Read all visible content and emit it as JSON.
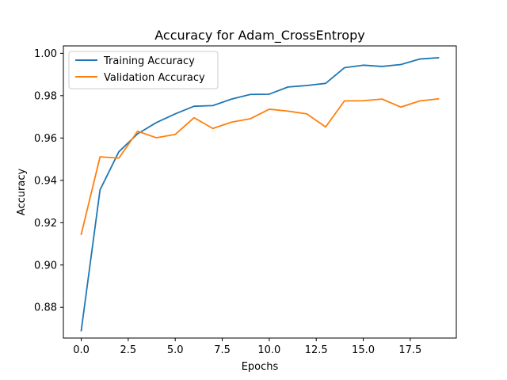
{
  "chart_data": {
    "type": "line",
    "title": "Accuracy for Adam_CrossEntropy",
    "xlabel": "Epochs",
    "ylabel": "Accuracy",
    "xlim": [
      -0.95,
      19.95
    ],
    "ylim": [
      0.8655,
      1.0035
    ],
    "xticks": [
      0.0,
      2.5,
      5.0,
      7.5,
      10.0,
      12.5,
      15.0,
      17.5
    ],
    "xtick_labels": [
      "0.0",
      "2.5",
      "5.0",
      "7.5",
      "10.0",
      "12.5",
      "15.0",
      "17.5"
    ],
    "yticks": [
      0.88,
      0.9,
      0.92,
      0.94,
      0.96,
      0.98,
      1.0
    ],
    "ytick_labels": [
      "0.88",
      "0.90",
      "0.92",
      "0.94",
      "0.96",
      "0.98",
      "1.00"
    ],
    "grid": false,
    "legend": "top-left",
    "x": [
      0,
      1,
      2,
      3,
      4,
      5,
      6,
      7,
      8,
      9,
      10,
      11,
      12,
      13,
      14,
      15,
      16,
      17,
      18,
      19
    ],
    "series": [
      {
        "name": "Training Accuracy",
        "color": "#1f77b4",
        "values": [
          0.869,
          0.9355,
          0.9535,
          0.962,
          0.9673,
          0.9714,
          0.975,
          0.9753,
          0.9784,
          0.9806,
          0.9807,
          0.9841,
          0.9848,
          0.9858,
          0.9932,
          0.9944,
          0.9938,
          0.9947,
          0.9973,
          0.9979
        ]
      },
      {
        "name": "Validation Accuracy",
        "color": "#ff7f0e",
        "values": [
          0.9145,
          0.9511,
          0.9505,
          0.9632,
          0.9601,
          0.9617,
          0.9696,
          0.9645,
          0.9675,
          0.9691,
          0.9736,
          0.9727,
          0.9714,
          0.9652,
          0.9775,
          0.9776,
          0.9784,
          0.9746,
          0.9775,
          0.9785
        ]
      }
    ]
  }
}
